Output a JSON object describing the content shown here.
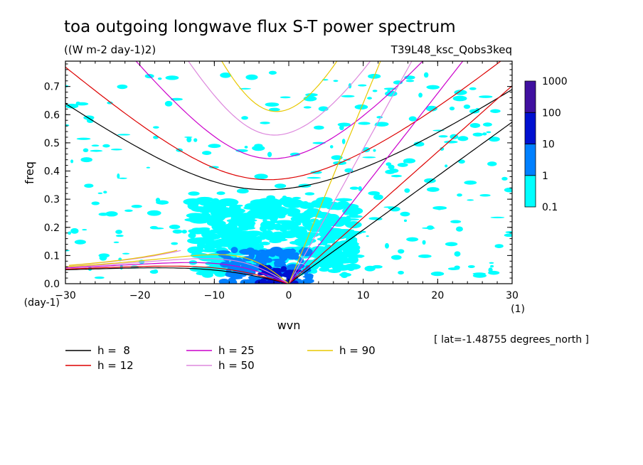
{
  "chart_data": {
    "type": "heatmap",
    "title": "toa outgoing longwave flux S-T power spectrum",
    "subtitle": "((W m-2 day-1)2)",
    "experiment": "T39L48_ksc_Qobs3keq",
    "xlabel": "wvn",
    "xunit": "(1)",
    "ylabel": "freq",
    "yunit": "(day-1)",
    "xlim": [
      -30,
      30
    ],
    "ylim": [
      0,
      0.79
    ],
    "xticks": [
      -30,
      -20,
      -10,
      0,
      10,
      20,
      30
    ],
    "yticks": [
      0.0,
      0.1,
      0.2,
      0.3,
      0.4,
      0.5,
      0.6,
      0.7
    ],
    "ytick_labels": [
      "0.0",
      "0.1",
      "0.2",
      "0.3",
      "0.4",
      "0.5",
      "0.6",
      "0.7"
    ],
    "annotation": "[ lat=-1.48755 degrees_north ]",
    "colorbar": {
      "levels": [
        "0.1",
        "1",
        "10",
        "100",
        "1000"
      ],
      "colors": [
        "#00ffff",
        "#0080ff",
        "#0010d0",
        "#4010a0"
      ]
    },
    "shaded_regions": [
      {
        "level": "0.1-1",
        "x": [
          -13,
          9
        ],
        "y": [
          0.03,
          0.3
        ]
      },
      {
        "level": "1-10",
        "x": [
          -9,
          3
        ],
        "y": [
          0.0,
          0.12
        ]
      },
      {
        "level": "10-100",
        "x": [
          -4,
          1
        ],
        "y": [
          0.0,
          0.06
        ]
      }
    ],
    "dispersion_curves": [
      {
        "label": "h =  8",
        "h": 8,
        "color": "#000000"
      },
      {
        "label": "h = 12",
        "h": 12,
        "color": "#dd0000"
      },
      {
        "label": "h = 25",
        "h": 25,
        "color": "#cc00cc"
      },
      {
        "label": "h = 50",
        "h": 50,
        "color": "#dd88dd"
      },
      {
        "label": "h = 90",
        "h": 90,
        "color": "#e8c800"
      }
    ]
  }
}
